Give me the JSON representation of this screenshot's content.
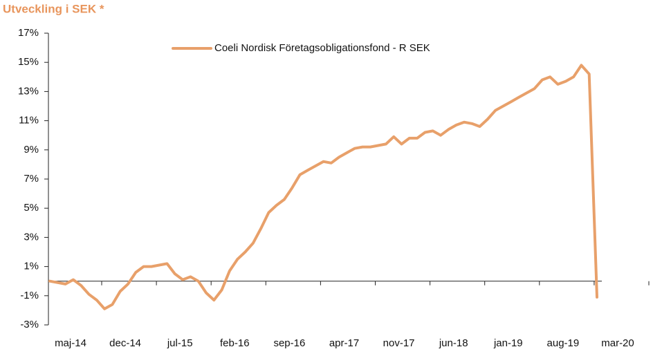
{
  "chart_data": {
    "type": "line",
    "title": "Utveckling i SEK *",
    "categories": [
      "maj-14",
      null,
      null,
      null,
      null,
      null,
      null,
      "dec-14",
      null,
      null,
      null,
      null,
      null,
      null,
      "jul-15",
      null,
      null,
      null,
      null,
      null,
      null,
      "feb-16",
      null,
      null,
      null,
      null,
      null,
      null,
      "sep-16",
      null,
      null,
      null,
      null,
      null,
      null,
      "apr-17",
      null,
      null,
      null,
      null,
      null,
      null,
      "nov-17",
      null,
      null,
      null,
      null,
      null,
      null,
      "jun-18",
      null,
      null,
      null,
      null,
      null,
      null,
      "jan-19",
      null,
      null,
      null,
      null,
      null,
      null,
      "aug-19",
      null,
      null,
      null,
      null,
      null,
      null,
      "mar-20"
    ],
    "series": [
      {
        "name": "Coeli Nordisk Företagsobligationsfond - R SEK",
        "color": "#e8a06a",
        "values": [
          0.0,
          -0.1,
          -0.2,
          0.1,
          -0.3,
          -0.9,
          -1.3,
          -1.9,
          -1.6,
          -0.7,
          -0.2,
          0.6,
          1.0,
          1.0,
          1.1,
          1.2,
          0.5,
          0.1,
          0.3,
          0.0,
          -0.8,
          -1.3,
          -0.6,
          0.7,
          1.5,
          2.0,
          2.6,
          3.6,
          4.7,
          5.2,
          5.6,
          6.4,
          7.3,
          7.6,
          7.9,
          8.2,
          8.1,
          8.5,
          8.8,
          9.1,
          9.2,
          9.2,
          9.3,
          9.4,
          9.9,
          9.4,
          9.8,
          9.8,
          10.2,
          10.3,
          10.0,
          10.4,
          10.7,
          10.9,
          10.8,
          10.6,
          11.1,
          11.7,
          12.0,
          12.3,
          12.6,
          12.9,
          13.2,
          13.8,
          14.0,
          13.5,
          13.7,
          14.0,
          14.8,
          14.2,
          -1.1
        ]
      }
    ],
    "ylim": [
      -3,
      17
    ],
    "yticks": [
      {
        "value": -3,
        "label": "-3%"
      },
      {
        "value": -1,
        "label": "-1%"
      },
      {
        "value": 1,
        "label": "1%"
      },
      {
        "value": 3,
        "label": "3%"
      },
      {
        "value": 5,
        "label": "5%"
      },
      {
        "value": 7,
        "label": "7%"
      },
      {
        "value": 9,
        "label": "9%"
      },
      {
        "value": 11,
        "label": "11%"
      },
      {
        "value": 13,
        "label": "13%"
      },
      {
        "value": 15,
        "label": "15%"
      },
      {
        "value": 17,
        "label": "17%"
      }
    ],
    "grid": false,
    "legend": "top"
  }
}
